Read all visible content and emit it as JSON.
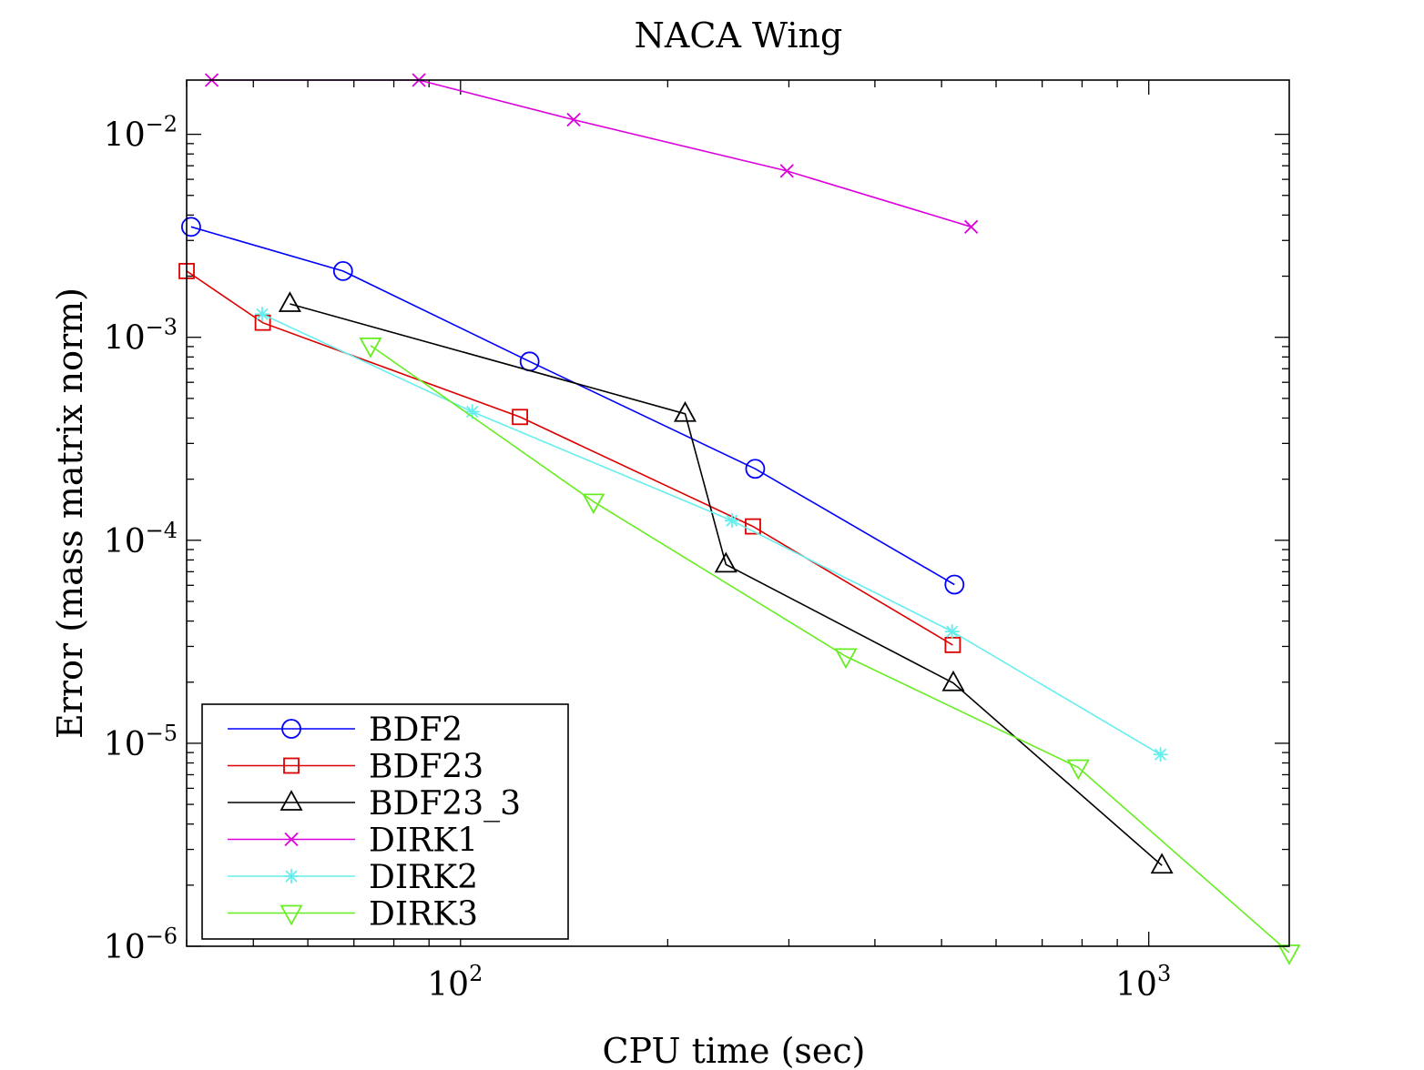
{
  "chart_data": {
    "type": "line",
    "title": "NACA Wing",
    "xlabel": "CPU time (sec)",
    "ylabel": "Error (mass matrix norm)",
    "x_scale": "log",
    "y_scale": "log",
    "xlim": [
      40,
      1600
    ],
    "ylim": [
      1e-06,
      0.0185
    ],
    "x_ticks": [
      {
        "value": 100,
        "base": "10",
        "exp": "2"
      },
      {
        "value": 1000,
        "base": "10",
        "exp": "3"
      }
    ],
    "y_ticks": [
      {
        "value": 0.01,
        "base": "10",
        "exp": "−2"
      },
      {
        "value": 0.001,
        "base": "10",
        "exp": "−3"
      },
      {
        "value": 0.0001,
        "base": "10",
        "exp": "−4"
      },
      {
        "value": 1e-05,
        "base": "10",
        "exp": "−5"
      },
      {
        "value": 1e-06,
        "base": "10",
        "exp": "−6"
      }
    ],
    "grid": false,
    "legend_position": "bottom-left",
    "series": [
      {
        "name": "BDF2",
        "color": "#0000ff",
        "marker": "circle",
        "x": [
          40.6,
          67.5,
          126,
          268,
          522
        ],
        "y": [
          0.0035,
          0.00212,
          0.00076,
          0.000225,
          6.05e-05
        ]
      },
      {
        "name": "BDF23",
        "color": "#dd0000",
        "marker": "square",
        "x": [
          40,
          51.6,
          122,
          266,
          519
        ],
        "y": [
          0.00212,
          0.00118,
          0.000405,
          0.000117,
          3.05e-05
        ]
      },
      {
        "name": "BDF23_3",
        "color": "#000000",
        "marker": "triangle-up",
        "x": [
          56.5,
          212,
          243,
          520,
          1045
        ],
        "y": [
          0.00146,
          0.00042,
          7.6e-05,
          1.98e-05,
          2.5e-06
        ]
      },
      {
        "name": "DIRK1",
        "color": "#dd00dd",
        "marker": "x",
        "x": [
          43.5,
          87,
          146,
          298,
          552
        ],
        "y": [
          0.0185,
          0.0185,
          0.0118,
          0.0066,
          0.0035
        ]
      },
      {
        "name": "DIRK2",
        "color": "#66eeee",
        "marker": "asterisk",
        "x": [
          51.5,
          104,
          248,
          518,
          1040
        ],
        "y": [
          0.0013,
          0.00043,
          0.000125,
          3.55e-05,
          8.8e-06
        ]
      },
      {
        "name": "DIRK3",
        "color": "#66ee22",
        "marker": "triangle-down",
        "x": [
          74,
          156,
          363,
          790,
          1600
        ],
        "y": [
          0.00091,
          0.000155,
          2.68e-05,
          7.6e-06,
          9.3e-07
        ]
      }
    ]
  }
}
